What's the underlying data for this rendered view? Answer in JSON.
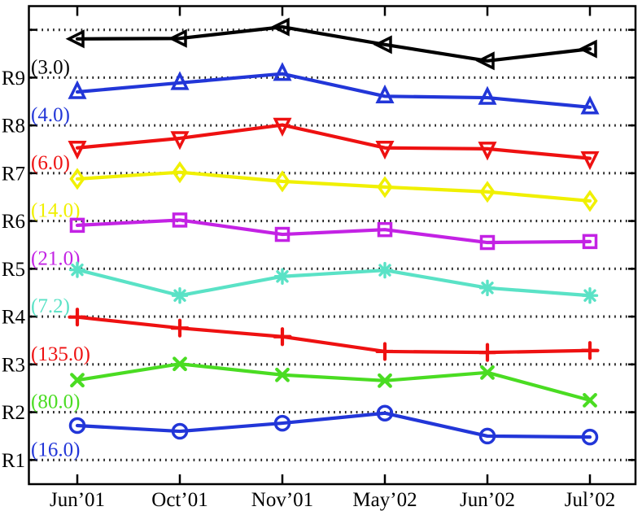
{
  "figure": {
    "background": "#ffffff",
    "frame_color": "#000000",
    "grid_color": "#1a1a1a",
    "tick_color": "#000000",
    "text_color": "#000000"
  },
  "chart_data": {
    "type": "line",
    "title": "",
    "xlabel": "",
    "ylabel": "",
    "grid": "dotted-horizontal",
    "legend_position": "inline-left-annotations",
    "categories": [
      "Jun’01",
      "Oct’01",
      "Nov’01",
      "May’02",
      "Jun’02",
      "Jul’02"
    ],
    "y_axis": {
      "tick_labels": [
        "R1",
        "R2",
        "R3",
        "R4",
        "R5",
        "R6",
        "R7",
        "R8",
        "R9"
      ],
      "tick_values": [
        1,
        2,
        3,
        4,
        5,
        6,
        7,
        8,
        9
      ],
      "grid_values": [
        1,
        2,
        3,
        4,
        5,
        6,
        7,
        8,
        9,
        10
      ],
      "ylim": [
        0.49,
        10.5
      ]
    },
    "series": [
      {
        "name": "(3.0)",
        "label_y": 9,
        "color": "#000000",
        "marker": "triangle-left",
        "values": [
          9.81,
          9.82,
          10.06,
          9.69,
          9.35,
          9.6
        ]
      },
      {
        "name": "(4.0)",
        "label_y": 8,
        "color": "#2236d8",
        "marker": "triangle-up",
        "values": [
          8.7,
          8.89,
          9.08,
          8.61,
          8.58,
          8.38
        ]
      },
      {
        "name": "(6.0)",
        "label_y": 7,
        "color": "#ee1111",
        "marker": "triangle-down",
        "values": [
          7.53,
          7.73,
          8.01,
          7.53,
          7.51,
          7.31
        ]
      },
      {
        "name": "(14.0)",
        "label_y": 6,
        "color": "#f0f000",
        "marker": "diamond",
        "values": [
          6.88,
          7.02,
          6.83,
          6.71,
          6.61,
          6.42
        ]
      },
      {
        "name": "(21.0)",
        "label_y": 5,
        "color": "#c322e4",
        "marker": "square",
        "values": [
          5.91,
          6.02,
          5.72,
          5.82,
          5.55,
          5.57
        ]
      },
      {
        "name": "(7.2)",
        "label_y": 4,
        "color": "#5ae2c6",
        "marker": "asterisk",
        "values": [
          4.98,
          4.44,
          4.84,
          4.97,
          4.6,
          4.44
        ]
      },
      {
        "name": "(135.0)",
        "label_y": 3,
        "color": "#ee1111",
        "marker": "plus",
        "values": [
          3.99,
          3.76,
          3.58,
          3.27,
          3.25,
          3.29
        ]
      },
      {
        "name": "(80.0)",
        "label_y": 2,
        "color": "#4adc22",
        "marker": "x",
        "values": [
          2.67,
          3.01,
          2.78,
          2.66,
          2.83,
          2.25
        ]
      },
      {
        "name": "(16.0)",
        "label_y": 1,
        "color": "#2236d8",
        "marker": "circle",
        "values": [
          1.72,
          1.6,
          1.77,
          1.98,
          1.5,
          1.48
        ]
      }
    ]
  }
}
